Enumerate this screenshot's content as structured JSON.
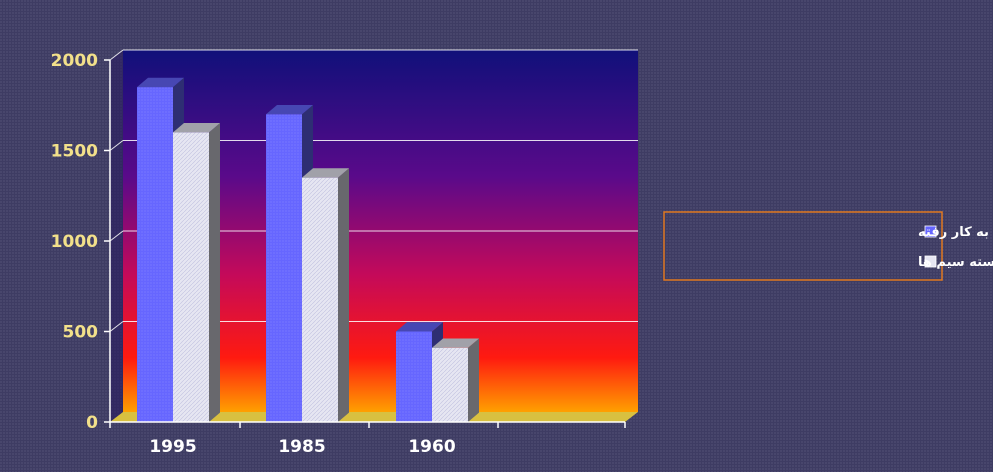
{
  "chart_data": {
    "type": "bar",
    "categories": [
      "1995",
      "1985",
      "1960"
    ],
    "series": [
      {
        "name": "طول سیم های به کار رفته",
        "values": [
          1850,
          1700,
          500
        ],
        "color": "#6666ff"
      },
      {
        "name": "تعداد اتصالات در دسته سیم ها",
        "values": [
          1600,
          1350,
          410
        ],
        "color": "#e6e6f2"
      }
    ],
    "y_ticks": [
      "0",
      "500",
      "1000",
      "1500",
      "2000"
    ],
    "ylim": [
      0,
      2000
    ],
    "grid": true,
    "legend_position": "right",
    "colors": {
      "background": "#3e3c63",
      "plot_top": "#10107a",
      "plot_mid": "#8a0a7a",
      "plot_low": "#ff1010",
      "plot_bottom": "#ffa000",
      "legend_border": "#e07820",
      "y_tick_color": "#f2e08a"
    }
  }
}
